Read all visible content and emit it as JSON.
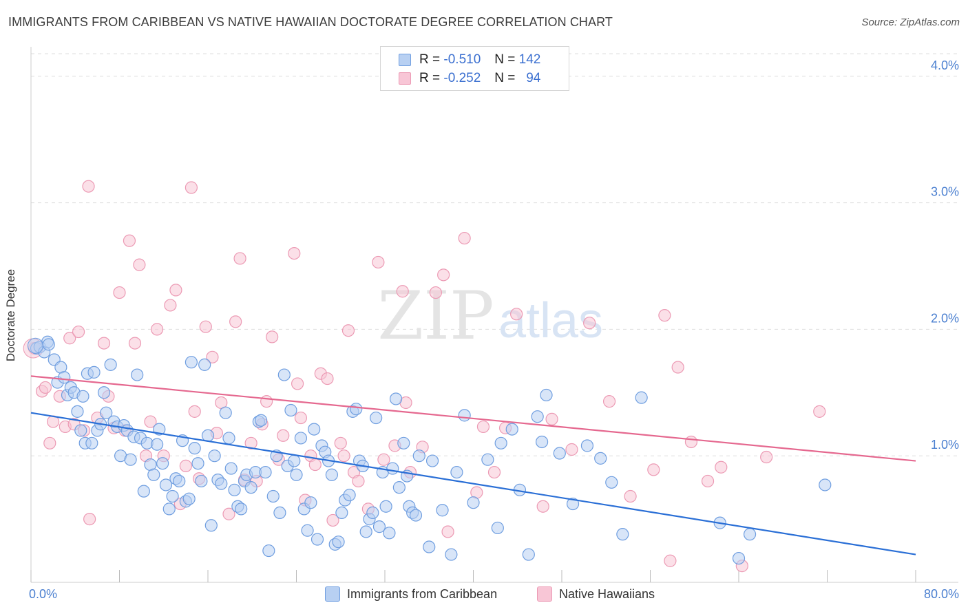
{
  "header": {
    "title": "IMMIGRANTS FROM CARIBBEAN VS NATIVE HAWAIIAN DOCTORATE DEGREE CORRELATION CHART",
    "source": "Source: ZipAtlas.com"
  },
  "watermark": {
    "zip": "ZIP",
    "atlas": "atlas"
  },
  "legend": {
    "rows": [
      {
        "r_label": "R =",
        "r_value": "-0.510",
        "n_label": "N =",
        "n_value": "142"
      },
      {
        "r_label": "R =",
        "r_value": "-0.252",
        "n_label": "N =",
        "n_value": "94"
      }
    ]
  },
  "bottom_legend": {
    "series1": "Immigrants from Caribbean",
    "series2": "Native Hawaiians"
  },
  "colors": {
    "blue_fill": "#b8d0f2",
    "blue_stroke": "#6f9ee0",
    "blue_line": "#2a6fd6",
    "pink_fill": "#f8c6d6",
    "pink_stroke": "#ec9ab4",
    "pink_line": "#e5688f",
    "tick_label": "#4a7fd0",
    "grid": "#dddddd"
  },
  "chart_data": {
    "type": "scatter",
    "title": "IMMIGRANTS FROM CARIBBEAN VS NATIVE HAWAIIAN DOCTORATE DEGREE CORRELATION CHART",
    "xlabel": "",
    "ylabel": "Doctorate Degree",
    "xlim": [
      0,
      80
    ],
    "ylim": [
      0,
      4.2
    ],
    "x_tick_labels": [
      "0.0%",
      "80.0%"
    ],
    "y_ticks": [
      1.0,
      2.0,
      3.0,
      4.0
    ],
    "y_tick_labels": [
      "1.0%",
      "2.0%",
      "3.0%",
      "4.0%"
    ],
    "grid": "horizontal dashed",
    "legend_position": "top-center",
    "series": [
      {
        "name": "Immigrants from Caribbean",
        "color": "#6f9ee0",
        "trend": {
          "x": [
            0,
            80
          ],
          "y": [
            1.34,
            0.22
          ]
        },
        "points": [
          [
            0.5,
            1.85
          ],
          [
            0.8,
            1.86
          ],
          [
            1.2,
            1.82
          ],
          [
            1.5,
            1.9
          ],
          [
            1.6,
            1.88
          ],
          [
            2.1,
            1.76
          ],
          [
            2.4,
            1.58
          ],
          [
            2.7,
            1.7
          ],
          [
            3.0,
            1.62
          ],
          [
            3.3,
            1.48
          ],
          [
            3.6,
            1.54
          ],
          [
            3.9,
            1.5
          ],
          [
            4.2,
            1.35
          ],
          [
            4.5,
            1.2
          ],
          [
            4.7,
            1.47
          ],
          [
            4.9,
            1.1
          ],
          [
            5.1,
            1.65
          ],
          [
            5.5,
            1.1
          ],
          [
            5.7,
            1.66
          ],
          [
            6.0,
            1.2
          ],
          [
            6.3,
            1.25
          ],
          [
            6.6,
            1.5
          ],
          [
            6.8,
            1.34
          ],
          [
            7.2,
            1.72
          ],
          [
            7.5,
            1.27
          ],
          [
            7.8,
            1.23
          ],
          [
            8.1,
            1.0
          ],
          [
            8.4,
            1.24
          ],
          [
            8.7,
            1.2
          ],
          [
            9.0,
            0.97
          ],
          [
            9.3,
            1.15
          ],
          [
            9.6,
            1.64
          ],
          [
            9.9,
            1.14
          ],
          [
            10.2,
            0.72
          ],
          [
            10.5,
            1.1
          ],
          [
            10.8,
            0.93
          ],
          [
            11.1,
            0.85
          ],
          [
            11.4,
            1.09
          ],
          [
            11.6,
            1.21
          ],
          [
            11.9,
            0.94
          ],
          [
            12.2,
            0.77
          ],
          [
            12.5,
            0.58
          ],
          [
            12.8,
            0.68
          ],
          [
            13.1,
            0.82
          ],
          [
            13.4,
            0.8
          ],
          [
            13.7,
            1.12
          ],
          [
            14.0,
            0.64
          ],
          [
            14.3,
            0.66
          ],
          [
            14.5,
            1.74
          ],
          [
            14.8,
            1.06
          ],
          [
            15.1,
            0.94
          ],
          [
            15.4,
            0.8
          ],
          [
            15.7,
            1.72
          ],
          [
            16.0,
            1.16
          ],
          [
            16.3,
            0.45
          ],
          [
            16.6,
            1.0
          ],
          [
            16.9,
            0.81
          ],
          [
            17.2,
            0.78
          ],
          [
            17.6,
            1.34
          ],
          [
            17.9,
            1.14
          ],
          [
            18.1,
            0.9
          ],
          [
            18.4,
            0.73
          ],
          [
            18.7,
            0.6
          ],
          [
            19.0,
            0.58
          ],
          [
            19.3,
            0.8
          ],
          [
            19.5,
            0.85
          ],
          [
            19.9,
            0.75
          ],
          [
            20.3,
            0.87
          ],
          [
            20.6,
            1.27
          ],
          [
            20.8,
            1.28
          ],
          [
            21.2,
            0.87
          ],
          [
            21.5,
            0.25
          ],
          [
            21.9,
            0.68
          ],
          [
            22.2,
            1.0
          ],
          [
            22.5,
            0.55
          ],
          [
            22.9,
            1.64
          ],
          [
            23.2,
            0.92
          ],
          [
            23.5,
            1.36
          ],
          [
            23.8,
            0.96
          ],
          [
            24.0,
            0.85
          ],
          [
            24.4,
            1.14
          ],
          [
            24.7,
            0.58
          ],
          [
            25.0,
            0.41
          ],
          [
            25.3,
            0.63
          ],
          [
            25.6,
            1.21
          ],
          [
            25.9,
            0.34
          ],
          [
            26.3,
            1.08
          ],
          [
            26.6,
            1.03
          ],
          [
            26.9,
            0.96
          ],
          [
            27.2,
            0.85
          ],
          [
            27.5,
            0.3
          ],
          [
            27.8,
            0.32
          ],
          [
            28.1,
            0.55
          ],
          [
            28.4,
            0.65
          ],
          [
            28.8,
            0.69
          ],
          [
            29.1,
            1.35
          ],
          [
            29.4,
            1.37
          ],
          [
            29.7,
            0.96
          ],
          [
            30.0,
            0.92
          ],
          [
            30.3,
            0.4
          ],
          [
            30.6,
            0.5
          ],
          [
            30.9,
            0.55
          ],
          [
            31.2,
            1.3
          ],
          [
            31.5,
            0.44
          ],
          [
            31.8,
            0.87
          ],
          [
            32.1,
            0.6
          ],
          [
            32.4,
            0.39
          ],
          [
            32.7,
            0.9
          ],
          [
            33.0,
            1.45
          ],
          [
            33.3,
            0.75
          ],
          [
            33.7,
            1.1
          ],
          [
            34.0,
            0.84
          ],
          [
            34.2,
            0.6
          ],
          [
            34.5,
            0.55
          ],
          [
            34.8,
            0.53
          ],
          [
            35.1,
            1.0
          ],
          [
            36.0,
            0.28
          ],
          [
            36.3,
            0.96
          ],
          [
            37.2,
            0.57
          ],
          [
            38.0,
            0.22
          ],
          [
            38.5,
            0.87
          ],
          [
            39.2,
            1.32
          ],
          [
            40.0,
            0.63
          ],
          [
            41.3,
            0.97
          ],
          [
            42.2,
            0.43
          ],
          [
            42.5,
            1.1
          ],
          [
            43.5,
            1.21
          ],
          [
            44.2,
            0.73
          ],
          [
            45.0,
            0.22
          ],
          [
            45.8,
            1.31
          ],
          [
            46.2,
            1.11
          ],
          [
            46.6,
            1.48
          ],
          [
            47.8,
            1.02
          ],
          [
            49.0,
            0.62
          ],
          [
            50.3,
            1.08
          ],
          [
            51.5,
            0.98
          ],
          [
            52.5,
            0.79
          ],
          [
            53.5,
            0.38
          ],
          [
            55.2,
            1.46
          ],
          [
            62.3,
            0.47
          ],
          [
            64.0,
            0.19
          ],
          [
            65.0,
            0.38
          ],
          [
            71.8,
            0.77
          ]
        ]
      },
      {
        "name": "Native Hawaiians",
        "color": "#ec9ab4",
        "trend": {
          "x": [
            0,
            80
          ],
          "y": [
            1.63,
            0.96
          ]
        },
        "points": [
          [
            0.3,
            1.85
          ],
          [
            1.0,
            1.51
          ],
          [
            1.3,
            1.54
          ],
          [
            1.7,
            1.1
          ],
          [
            2.0,
            1.27
          ],
          [
            2.6,
            1.47
          ],
          [
            3.1,
            1.23
          ],
          [
            3.5,
            1.93
          ],
          [
            3.9,
            1.25
          ],
          [
            4.3,
            1.98
          ],
          [
            4.8,
            1.2
          ],
          [
            5.2,
            3.13
          ],
          [
            5.3,
            0.5
          ],
          [
            6.0,
            1.3
          ],
          [
            6.6,
            1.89
          ],
          [
            7.0,
            1.47
          ],
          [
            7.5,
            1.22
          ],
          [
            8.0,
            2.29
          ],
          [
            8.5,
            1.2
          ],
          [
            8.9,
            2.7
          ],
          [
            9.4,
            1.89
          ],
          [
            9.8,
            2.51
          ],
          [
            10.4,
            1.0
          ],
          [
            10.8,
            1.27
          ],
          [
            11.4,
            2.0
          ],
          [
            12.0,
            1.0
          ],
          [
            12.6,
            2.19
          ],
          [
            13.1,
            2.31
          ],
          [
            13.5,
            0.62
          ],
          [
            14.0,
            0.92
          ],
          [
            14.5,
            3.12
          ],
          [
            14.8,
            1.35
          ],
          [
            15.2,
            0.82
          ],
          [
            15.8,
            2.02
          ],
          [
            16.4,
            1.78
          ],
          [
            16.8,
            1.18
          ],
          [
            17.2,
            1.42
          ],
          [
            17.9,
            0.54
          ],
          [
            18.5,
            2.06
          ],
          [
            18.9,
            2.56
          ],
          [
            19.3,
            0.81
          ],
          [
            19.9,
            1.1
          ],
          [
            20.4,
            0.8
          ],
          [
            20.9,
            1.25
          ],
          [
            21.3,
            1.43
          ],
          [
            21.8,
            1.94
          ],
          [
            22.4,
            0.97
          ],
          [
            22.8,
            1.16
          ],
          [
            23.8,
            2.6
          ],
          [
            24.1,
            1.57
          ],
          [
            24.4,
            1.3
          ],
          [
            24.8,
            0.65
          ],
          [
            25.3,
            1.0
          ],
          [
            25.7,
            0.93
          ],
          [
            26.2,
            1.65
          ],
          [
            26.8,
            1.61
          ],
          [
            27.3,
            0.49
          ],
          [
            28.0,
            1.1
          ],
          [
            28.3,
            1.0
          ],
          [
            28.7,
            1.99
          ],
          [
            29.2,
            0.87
          ],
          [
            29.6,
            0.8
          ],
          [
            30.5,
            0.58
          ],
          [
            31.4,
            2.53
          ],
          [
            31.9,
            0.97
          ],
          [
            32.9,
            1.08
          ],
          [
            33.6,
            2.3
          ],
          [
            33.9,
            1.42
          ],
          [
            34.3,
            0.87
          ],
          [
            35.4,
            1.07
          ],
          [
            36.6,
            2.29
          ],
          [
            37.3,
            2.43
          ],
          [
            37.7,
            0.4
          ],
          [
            39.2,
            2.72
          ],
          [
            40.3,
            0.71
          ],
          [
            40.9,
            1.23
          ],
          [
            41.9,
            0.87
          ],
          [
            42.9,
            1.22
          ],
          [
            43.9,
            2.12
          ],
          [
            46.3,
            0.6
          ],
          [
            47.1,
            1.29
          ],
          [
            48.9,
            1.05
          ],
          [
            50.5,
            2.05
          ],
          [
            52.3,
            1.43
          ],
          [
            54.2,
            0.68
          ],
          [
            56.3,
            0.89
          ],
          [
            57.3,
            2.11
          ],
          [
            57.8,
            0.17
          ],
          [
            58.5,
            1.7
          ],
          [
            59.7,
            1.11
          ],
          [
            61.2,
            0.8
          ],
          [
            62.4,
            0.91
          ],
          [
            64.3,
            0.13
          ],
          [
            66.5,
            0.99
          ],
          [
            71.3,
            1.35
          ]
        ]
      }
    ]
  }
}
